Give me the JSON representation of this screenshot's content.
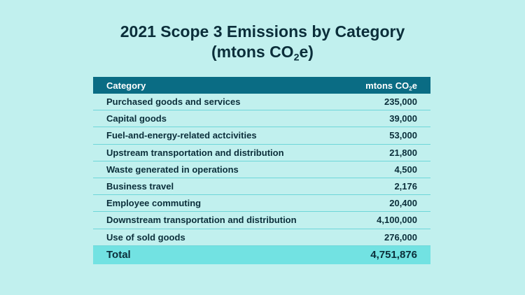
{
  "title": {
    "line1": "2021 Scope 3 Emissions by Category",
    "line2_prefix": "(mtons CO",
    "line2_sub": "2",
    "line2_suffix": "e)"
  },
  "table": {
    "header": {
      "category": "Category",
      "value_prefix": "mtons CO",
      "value_sub": "2",
      "value_suffix": "e"
    },
    "rows": [
      {
        "category": "Purchased goods and services",
        "value": "235,000"
      },
      {
        "category": "Capital goods",
        "value": "39,000"
      },
      {
        "category": "Fuel-and-energy-related actcivities",
        "value": "53,000"
      },
      {
        "category": "Upstream transportation and distribution",
        "value": "21,800"
      },
      {
        "category": "Waste generated in operations",
        "value": "4,500"
      },
      {
        "category": "Business travel",
        "value": "2,176"
      },
      {
        "category": "Employee commuting",
        "value": "20,400"
      },
      {
        "category": "Downstream transportation and distribution",
        "value": "4,100,000"
      },
      {
        "category": "Use of sold goods",
        "value": "276,000"
      }
    ],
    "total": {
      "label": "Total",
      "value": "4,751,876"
    }
  },
  "colors": {
    "background": "#c1f0ee",
    "header": "#0a6c84",
    "total_row": "#72e2e2",
    "text": "#0b2e3a"
  }
}
